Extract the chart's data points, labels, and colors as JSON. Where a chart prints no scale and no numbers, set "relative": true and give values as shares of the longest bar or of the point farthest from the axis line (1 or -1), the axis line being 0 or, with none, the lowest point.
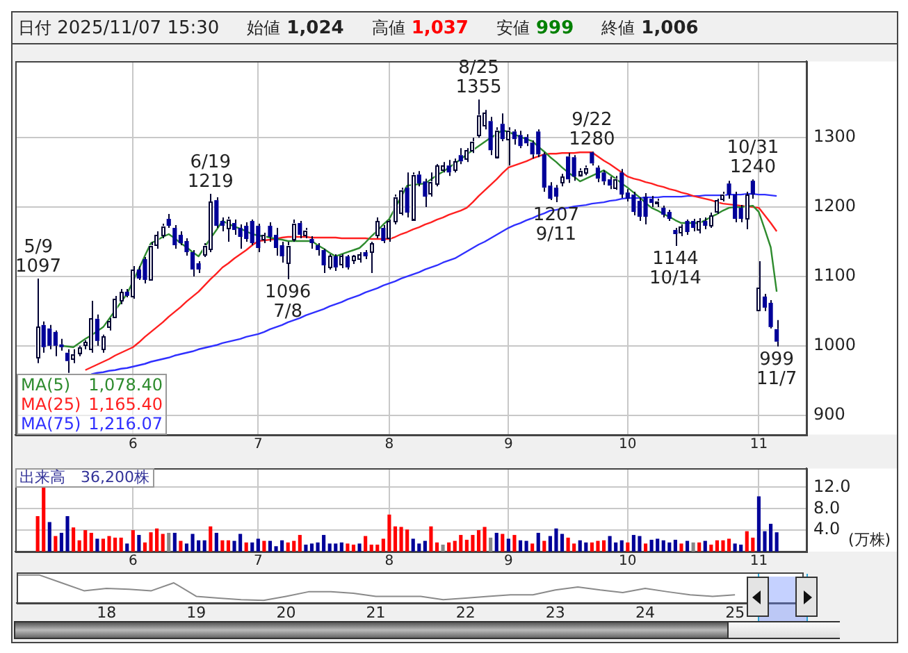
{
  "chart_data": [
    {
      "type": "candlestick",
      "annotations": [
        "日付 2025/11/07 15:30",
        "始値 1,024",
        "高値 1,037",
        "安値 999",
        "終値 1,006",
        {
          "text": "5/9\n1097",
          "y": 1097
        },
        {
          "text": "6/19\n1219",
          "y": 1219
        },
        {
          "text": "1096\n7/8",
          "y": 1096
        },
        {
          "text": "8/25\n1355",
          "y": 1355
        },
        {
          "text": "1207\n9/11",
          "y": 1207
        },
        {
          "text": "9/22\n1280",
          "y": 1280
        },
        {
          "text": "1144\n10/14",
          "y": 1144
        },
        {
          "text": "10/31\n1240",
          "y": 1240
        },
        {
          "text": "999\n11/7",
          "y": 999
        }
      ],
      "categories": [
        null,
        null,
        null,
        null,
        null,
        null,
        null,
        null,
        null,
        null,
        null,
        null,
        null,
        null,
        null,
        null,
        "6",
        null,
        null,
        null,
        null,
        null,
        null,
        null,
        null,
        null,
        null,
        null,
        null,
        null,
        null,
        null,
        null,
        null,
        null,
        null,
        null,
        "7",
        null,
        null,
        null,
        null,
        null,
        null,
        null,
        null,
        null,
        null,
        null,
        null,
        null,
        null,
        null,
        null,
        null,
        null,
        null,
        null,
        null,
        "8",
        null,
        null,
        null,
        null,
        null,
        null,
        null,
        null,
        null,
        null,
        null,
        null,
        null,
        null,
        null,
        null,
        null,
        null,
        null,
        "9",
        null,
        null,
        null,
        null,
        null,
        null,
        null,
        null,
        null,
        null,
        null,
        null,
        null,
        null,
        null,
        null,
        null,
        null,
        null,
        "10",
        null,
        null,
        null,
        null,
        null,
        null,
        null,
        null,
        null,
        null,
        null,
        null,
        null,
        null,
        null,
        null,
        null,
        null,
        null,
        null,
        null,
        "11",
        null,
        null,
        null
      ],
      "ohlc": [
        [
          982,
          1097,
          975,
          1027
        ],
        [
          1030,
          1035,
          990,
          998
        ],
        [
          1025,
          1030,
          995,
          1000
        ],
        [
          1020,
          1022,
          985,
          1000
        ],
        [
          1002,
          1010,
          993,
          998
        ],
        [
          990,
          995,
          961,
          978
        ],
        [
          982,
          995,
          975,
          988
        ],
        [
          990,
          1000,
          985,
          998
        ],
        [
          1000,
          1008,
          995,
          1005
        ],
        [
          995,
          1065,
          990,
          1039
        ],
        [
          1039,
          1045,
          1000,
          1007
        ],
        [
          995,
          1016,
          990,
          1014
        ],
        [
          1027,
          1040,
          1022,
          1035
        ],
        [
          1042,
          1072,
          1040,
          1068
        ],
        [
          1065,
          1082,
          1060,
          1078
        ],
        [
          1078,
          1082,
          1070,
          1072
        ],
        [
          1072,
          1115,
          1068,
          1110
        ],
        [
          1110,
          1115,
          1095,
          1097
        ],
        [
          1125,
          1128,
          1090,
          1095
        ],
        [
          1097,
          1150,
          1095,
          1145
        ],
        [
          1145,
          1165,
          1140,
          1160
        ],
        [
          1160,
          1176,
          1155,
          1173
        ],
        [
          1183,
          1190,
          1170,
          1173
        ],
        [
          1170,
          1174,
          1140,
          1145
        ],
        [
          1160,
          1165,
          1145,
          1148
        ],
        [
          1151,
          1155,
          1130,
          1135
        ],
        [
          1135,
          1138,
          1100,
          1110
        ],
        [
          1119,
          1122,
          1105,
          1110
        ],
        [
          1132,
          1148,
          1128,
          1145
        ],
        [
          1140,
          1219,
          1135,
          1208
        ],
        [
          1210,
          1214,
          1170,
          1173
        ],
        [
          1180,
          1185,
          1165,
          1173
        ],
        [
          1170,
          1186,
          1150,
          1183
        ],
        [
          1177,
          1182,
          1160,
          1167
        ],
        [
          1170,
          1175,
          1140,
          1157
        ],
        [
          1173,
          1178,
          1150,
          1154
        ],
        [
          1180,
          1182,
          1145,
          1148
        ],
        [
          1173,
          1176,
          1135,
          1141
        ],
        [
          1154,
          1163,
          1148,
          1160
        ],
        [
          1173,
          1178,
          1150,
          1157
        ],
        [
          1160,
          1170,
          1130,
          1141
        ],
        [
          1145,
          1150,
          1120,
          1129
        ],
        [
          1120,
          1150,
          1096,
          1145
        ],
        [
          1154,
          1182,
          1150,
          1177
        ],
        [
          1177,
          1180,
          1155,
          1160
        ],
        [
          1160,
          1170,
          1155,
          1167
        ],
        [
          1154,
          1158,
          1140,
          1148
        ],
        [
          1145,
          1148,
          1130,
          1138
        ],
        [
          1138,
          1140,
          1105,
          1116
        ],
        [
          1113,
          1132,
          1110,
          1129
        ],
        [
          1129,
          1132,
          1108,
          1113
        ],
        [
          1116,
          1132,
          1112,
          1129
        ],
        [
          1129,
          1131,
          1110,
          1113
        ],
        [
          1122,
          1131,
          1118,
          1129
        ],
        [
          1125,
          1135,
          1120,
          1132
        ],
        [
          1135,
          1138,
          1125,
          1129
        ],
        [
          1135,
          1150,
          1105,
          1148
        ],
        [
          1160,
          1185,
          1155,
          1180
        ],
        [
          1170,
          1174,
          1148,
          1151
        ],
        [
          1155,
          1182,
          1150,
          1180
        ],
        [
          1180,
          1218,
          1175,
          1215
        ],
        [
          1192,
          1228,
          1188,
          1225
        ],
        [
          1228,
          1250,
          1185,
          1192
        ],
        [
          1183,
          1250,
          1180,
          1247
        ],
        [
          1247,
          1252,
          1230,
          1234
        ],
        [
          1237,
          1241,
          1200,
          1215
        ],
        [
          1220,
          1250,
          1215,
          1237
        ],
        [
          1234,
          1262,
          1230,
          1260
        ],
        [
          1254,
          1265,
          1250,
          1260
        ],
        [
          1260,
          1268,
          1245,
          1250
        ],
        [
          1253,
          1270,
          1250,
          1266
        ],
        [
          1275,
          1285,
          1262,
          1266
        ],
        [
          1270,
          1285,
          1265,
          1282
        ],
        [
          1282,
          1300,
          1278,
          1295
        ],
        [
          1304,
          1355,
          1300,
          1333
        ],
        [
          1317,
          1340,
          1312,
          1336
        ],
        [
          1324,
          1330,
          1275,
          1282
        ],
        [
          1273,
          1315,
          1270,
          1311
        ],
        [
          1320,
          1335,
          1295,
          1298
        ],
        [
          1298,
          1315,
          1260,
          1311
        ],
        [
          1309,
          1312,
          1290,
          1298
        ],
        [
          1304,
          1310,
          1285,
          1288
        ],
        [
          1301,
          1305,
          1288,
          1292
        ],
        [
          1293,
          1296,
          1270,
          1276
        ],
        [
          1309,
          1312,
          1272,
          1276
        ],
        [
          1276,
          1279,
          1222,
          1228
        ],
        [
          1231,
          1236,
          1210,
          1212
        ],
        [
          1228,
          1232,
          1207,
          1215
        ],
        [
          1236,
          1248,
          1230,
          1244
        ],
        [
          1273,
          1278,
          1235,
          1240
        ],
        [
          1272,
          1275,
          1238,
          1244
        ],
        [
          1247,
          1256,
          1244,
          1253
        ],
        [
          1250,
          1260,
          1246,
          1257
        ],
        [
          1279,
          1280,
          1260,
          1263
        ],
        [
          1257,
          1260,
          1236,
          1241
        ],
        [
          1250,
          1253,
          1232,
          1237
        ],
        [
          1240,
          1244,
          1226,
          1231
        ],
        [
          1228,
          1245,
          1225,
          1241
        ],
        [
          1250,
          1255,
          1213,
          1218
        ],
        [
          1221,
          1226,
          1208,
          1212
        ],
        [
          1218,
          1222,
          1188,
          1193
        ],
        [
          1209,
          1214,
          1180,
          1186
        ],
        [
          1215,
          1220,
          1175,
          1186
        ],
        [
          1212,
          1216,
          1200,
          1206
        ],
        [
          1206,
          1212,
          1200,
          1209
        ],
        [
          1199,
          1202,
          1185,
          1189
        ],
        [
          1193,
          1196,
          1180,
          1183
        ],
        [
          1167,
          1170,
          1144,
          1161
        ],
        [
          1164,
          1175,
          1158,
          1172
        ],
        [
          1180,
          1182,
          1160,
          1164
        ],
        [
          1180,
          1183,
          1165,
          1170
        ],
        [
          1167,
          1184,
          1162,
          1180
        ],
        [
          1180,
          1185,
          1168,
          1173
        ],
        [
          1173,
          1192,
          1170,
          1188
        ],
        [
          1194,
          1212,
          1190,
          1210
        ],
        [
          1212,
          1222,
          1208,
          1219
        ],
        [
          1234,
          1238,
          1212,
          1218
        ],
        [
          1218,
          1222,
          1178,
          1183
        ],
        [
          1199,
          1203,
          1178,
          1183
        ],
        [
          1183,
          1222,
          1168,
          1218
        ],
        [
          1238,
          1240,
          1212,
          1218
        ],
        [
          1052,
          1122,
          1050,
          1084
        ],
        [
          1071,
          1075,
          1050,
          1055
        ],
        [
          1062,
          1066,
          1025,
          1027
        ],
        [
          1024,
          1037,
          999,
          1006
        ]
      ],
      "colors": [
        "#ffffff",
        "#000099",
        "#000099",
        "#000099",
        "#000099",
        "#000099",
        "#ffffff",
        "#ffffff",
        "#ffffff",
        "#ffffff",
        "#000099",
        "#ffffff",
        "#ffffff",
        "#ffffff",
        "#ffffff",
        "#000099",
        "#ffffff",
        "#000099",
        "#000099",
        "#ffffff",
        "#ffffff",
        "#ffffff",
        "#000099",
        "#000099",
        "#000099",
        "#000099",
        "#000099",
        "#000099",
        "#ffffff",
        "#ffffff",
        "#000099",
        "#000099",
        "#ffffff",
        "#000099",
        "#000099",
        "#000099",
        "#000099",
        "#000099",
        "#ffffff",
        "#000099",
        "#000099",
        "#000099",
        "#ffffff",
        "#ffffff",
        "#000099",
        "#ffffff",
        "#000099",
        "#000099",
        "#000099",
        "#ffffff",
        "#000099",
        "#ffffff",
        "#000099",
        "#ffffff",
        "#ffffff",
        "#000099",
        "#ffffff",
        "#ffffff",
        "#000099",
        "#ffffff",
        "#ffffff",
        "#ffffff",
        "#000099",
        "#ffffff",
        "#000099",
        "#000099",
        "#ffffff",
        "#ffffff",
        "#ffffff",
        "#000099",
        "#ffffff",
        "#000099",
        "#ffffff",
        "#ffffff",
        "#ffffff",
        "#ffffff",
        "#000099",
        "#ffffff",
        "#000099",
        "#ffffff",
        "#000099",
        "#000099",
        "#000099",
        "#000099",
        "#000099",
        "#000099",
        "#000099",
        "#000099",
        "#ffffff",
        "#000099",
        "#000099",
        "#ffffff",
        "#ffffff",
        "#000099",
        "#000099",
        "#000099",
        "#000099",
        "#ffffff",
        "#000099",
        "#000099",
        "#000099",
        "#000099",
        "#000099",
        "#000099",
        "#ffffff",
        "#000099",
        "#000099",
        "#000099",
        "#ffffff",
        "#000099",
        "#000099",
        "#ffffff",
        "#000099",
        "#ffffff",
        "#ffffff",
        "#ffffff",
        "#000099",
        "#000099",
        "#000099",
        "#ffffff",
        "#000099",
        "#ffffff",
        "#000099",
        "#000099",
        "#000099"
      ],
      "series": [
        {
          "type": "line",
          "name": "MA(5) 1,078.40",
          "color": "#2e8b2e",
          "values": [
            null,
            null,
            null,
            null,
            1000,
            999,
            998,
            1004,
            1010,
            1015,
            1021,
            1027,
            1039,
            1051,
            1063,
            1075,
            1093,
            1111,
            1130,
            1148,
            1152,
            1157,
            1161,
            1155,
            1148,
            1142,
            1135,
            1129,
            1142,
            1155,
            1167,
            1180,
            1176,
            1172,
            1169,
            1165,
            1161,
            1159,
            1158,
            1156,
            1154,
            1153,
            1151,
            1151,
            1151,
            1151,
            1151,
            1145,
            1140,
            1134,
            1129,
            1132,
            1135,
            1138,
            1141,
            1149,
            1158,
            1166,
            1175,
            1183,
            1199,
            1215,
            1231,
            1232,
            1233,
            1234,
            1240,
            1246,
            1251,
            1257,
            1263,
            1269,
            1276,
            1282,
            1288,
            1294,
            1300,
            1305,
            1311,
            1308,
            1305,
            1301,
            1298,
            1295,
            1287,
            1280,
            1272,
            1265,
            1257,
            1250,
            1244,
            1237,
            1241,
            1245,
            1249,
            1253,
            1247,
            1241,
            1234,
            1228,
            1221,
            1214,
            1206,
            1199,
            1195,
            1190,
            1186,
            1181,
            1177,
            1177,
            1177,
            1177,
            1181,
            1186,
            1190,
            1195,
            1199,
            1200,
            1200,
            1201,
            1202,
            1193,
            1168,
            1142,
            1078
          ]
        },
        {
          "type": "line",
          "name": "MA(25) 1,165.40",
          "color": "#ff2020",
          "values": [
            null,
            null,
            null,
            null,
            null,
            null,
            null,
            null,
            965,
            969,
            973,
            977,
            981,
            986,
            990,
            994,
            998,
            1005,
            1013,
            1020,
            1027,
            1034,
            1042,
            1049,
            1056,
            1064,
            1071,
            1078,
            1087,
            1096,
            1104,
            1113,
            1119,
            1126,
            1132,
            1138,
            1145,
            1151,
            1152,
            1153,
            1154,
            1156,
            1157,
            1157,
            1157,
            1157,
            1156,
            1156,
            1156,
            1156,
            1156,
            1155,
            1155,
            1155,
            1155,
            1155,
            1154,
            1154,
            1154,
            1154,
            1157,
            1161,
            1164,
            1168,
            1171,
            1175,
            1178,
            1182,
            1185,
            1189,
            1192,
            1195,
            1199,
            1207,
            1216,
            1224,
            1232,
            1240,
            1249,
            1257,
            1260,
            1263,
            1266,
            1270,
            1273,
            1276,
            1277,
            1277,
            1278,
            1278,
            1278,
            1279,
            1279,
            1279,
            1273,
            1267,
            1262,
            1256,
            1250,
            1244,
            1241,
            1239,
            1236,
            1234,
            1231,
            1229,
            1226,
            1224,
            1221,
            1219,
            1216,
            1214,
            1212,
            1210,
            1207,
            1205,
            1204,
            1203,
            1202,
            1201,
            1200,
            1199,
            1188,
            1177,
            1165
          ]
        },
        {
          "type": "line",
          "name": "MA(75) 1,216.07",
          "color": "#3030ff",
          "values": [
            null,
            null,
            null,
            null,
            null,
            null,
            null,
            null,
            null,
            959,
            961,
            962,
            964,
            965,
            967,
            968,
            970,
            972,
            974,
            977,
            979,
            981,
            983,
            986,
            988,
            990,
            992,
            995,
            997,
            999,
            1001,
            1004,
            1006,
            1008,
            1010,
            1013,
            1015,
            1017,
            1020,
            1024,
            1027,
            1030,
            1034,
            1037,
            1040,
            1044,
            1047,
            1050,
            1053,
            1057,
            1060,
            1063,
            1067,
            1070,
            1073,
            1077,
            1080,
            1083,
            1087,
            1090,
            1093,
            1097,
            1100,
            1103,
            1106,
            1110,
            1113,
            1116,
            1120,
            1123,
            1126,
            1131,
            1136,
            1141,
            1146,
            1150,
            1155,
            1160,
            1165,
            1170,
            1174,
            1177,
            1181,
            1184,
            1188,
            1191,
            1195,
            1196,
            1198,
            1199,
            1201,
            1202,
            1203,
            1205,
            1206,
            1207,
            1209,
            1210,
            1212,
            1213,
            1213,
            1213,
            1214,
            1214,
            1214,
            1215,
            1215,
            1215,
            1215,
            1216,
            1216,
            1216,
            1217,
            1217,
            1217,
            1217,
            1218,
            1218,
            1218,
            1219,
            1219,
            1218,
            1218,
            1217,
            1216
          ]
        }
      ],
      "ylim": [
        872,
        1410
      ],
      "yticks": [
        900,
        1000,
        1100,
        1200,
        1300
      ],
      "grid": true,
      "legend": "bottom left"
    },
    {
      "type": "bar",
      "categories": [
        null,
        null,
        null,
        null,
        null,
        null,
        null,
        null,
        null,
        null,
        null,
        null,
        null,
        null,
        null,
        null,
        "6",
        null,
        null,
        null,
        null,
        null,
        null,
        null,
        null,
        null,
        null,
        null,
        null,
        null,
        null,
        null,
        null,
        null,
        null,
        null,
        null,
        "7",
        null,
        null,
        null,
        null,
        null,
        null,
        null,
        null,
        null,
        null,
        null,
        null,
        null,
        null,
        null,
        null,
        null,
        null,
        null,
        null,
        null,
        "8",
        null,
        null,
        null,
        null,
        null,
        null,
        null,
        null,
        null,
        null,
        null,
        null,
        null,
        null,
        null,
        null,
        null,
        null,
        null,
        "9",
        null,
        null,
        null,
        null,
        null,
        null,
        null,
        null,
        null,
        null,
        null,
        null,
        null,
        null,
        null,
        null,
        null,
        null,
        null,
        "10",
        null,
        null,
        null,
        null,
        null,
        null,
        null,
        null,
        null,
        null,
        null,
        null,
        null,
        null,
        null,
        null,
        null,
        null,
        null,
        null,
        null,
        "11",
        null,
        null,
        null
      ],
      "values": [
        6.6,
        12.0,
        5.5,
        2.9,
        3.5,
        6.6,
        4.5,
        2.1,
        4.0,
        3.5,
        2.4,
        2.4,
        2.9,
        2.6,
        2.6,
        1.5,
        4.0,
        3.1,
        1.7,
        3.6,
        4.3,
        3.3,
        3.5,
        3.5,
        2.0,
        1.5,
        3.3,
        2.1,
        2.1,
        4.7,
        3.5,
        2.1,
        2.1,
        2.0,
        3.3,
        1.7,
        1.7,
        2.4,
        2.0,
        2.0,
        1.0,
        2.1,
        1.7,
        2.0,
        3.1,
        1.3,
        1.5,
        1.7,
        3.1,
        1.5,
        1.5,
        1.7,
        1.5,
        1.3,
        1.5,
        2.9,
        1.3,
        1.3,
        2.4,
        6.9,
        4.7,
        4.6,
        4.1,
        2.4,
        1.5,
        2.0,
        4.7,
        1.7,
        1.3,
        1.7,
        2.0,
        3.1,
        2.2,
        3.1,
        4.0,
        4.6,
        2.6,
        3.5,
        3.3,
        2.4,
        3.1,
        2.1,
        2.0,
        1.5,
        3.5,
        2.0,
        2.9,
        4.3,
        3.3,
        2.6,
        1.5,
        2.1,
        1.7,
        1.7,
        2.0,
        2.1,
        2.9,
        1.7,
        2.1,
        1.7,
        3.1,
        2.9,
        1.5,
        2.2,
        2.4,
        2.1,
        1.7,
        2.2,
        1.5,
        2.0,
        1.7,
        1.7,
        2.0,
        1.3,
        2.1,
        2.1,
        2.4,
        1.5,
        1.3,
        3.8,
        2.6,
        10.3,
        3.8,
        5.2,
        3.6
      ],
      "colors": [
        "#ff0000",
        "#ff0000",
        "#000099",
        "#ff0000",
        "#000099",
        "#000099",
        "#ff0000",
        "#ff0000",
        "#ff0000",
        "#ff0000",
        "#000099",
        "#ff0000",
        "#ff0000",
        "#ff0000",
        "#ff0000",
        "#000099",
        "#ff0000",
        "#000099",
        "#ff0000",
        "#ff0000",
        "#ff0000",
        "#ff0000",
        "#888888",
        "#000099",
        "#ff0000",
        "#000099",
        "#000099",
        "#000099",
        "#000099",
        "#ff0000",
        "#000099",
        "#ff0000",
        "#ff0000",
        "#000099",
        "#000099",
        "#ff0000",
        "#000099",
        "#000099",
        "#ff0000",
        "#000099",
        "#000099",
        "#000099",
        "#ff0000",
        "#ff0000",
        "#ff0000",
        "#000099",
        "#000099",
        "#000099",
        "#000099",
        "#000099",
        "#000099",
        "#000099",
        "#ff0000",
        "#ff0000",
        "#000099",
        "#ff0000",
        "#ff0000",
        "#ff0000",
        "#ff0000",
        "#ff0000",
        "#ff0000",
        "#ff0000",
        "#ff0000",
        "#000099",
        "#000099",
        "#000099",
        "#ff0000",
        "#ff0000",
        "#888888",
        "#ff0000",
        "#ff0000",
        "#ff0000",
        "#ff0000",
        "#ff0000",
        "#ff0000",
        "#ff0000",
        "#888888",
        "#000099",
        "#ff0000",
        "#000099",
        "#ff0000",
        "#000099",
        "#000099",
        "#ff0000",
        "#000099",
        "#ff0000",
        "#000099",
        "#000099",
        "#000099",
        "#ff0000",
        "#ff0000",
        "#000099",
        "#000099",
        "#ff0000",
        "#ff0000",
        "#ff0000",
        "#000099",
        "#000099",
        "#000099",
        "#ff0000",
        "#000099",
        "#000099",
        "#ff0000",
        "#000099",
        "#000099",
        "#000099",
        "#000099",
        "#000099",
        "#ff0000",
        "#000099",
        "#888888",
        "#ff0000",
        "#000099",
        "#ff0000",
        "#ff0000",
        "#ff0000",
        "#ff0000",
        "#000099",
        "#000099",
        "#ff0000",
        "#ff0000",
        "#000099",
        "#000099",
        "#000099",
        "#000099"
      ],
      "ylim": [
        0,
        15.5
      ],
      "yticks": [
        {
          "value": 4,
          "label": "4.0"
        },
        {
          "value": 8,
          "label": "8.0"
        },
        {
          "value": 12,
          "label": "12.0"
        }
      ],
      "ylabel": "(万株)",
      "annotations": [
        "出来高　36,200株"
      ],
      "grid": true
    },
    {
      "type": "line",
      "relative": true,
      "tick_labels": "x",
      "color": "#8a8a8a",
      "categories": [
        null,
        null,
        null,
        null,
        "18",
        null,
        null,
        null,
        "19",
        null,
        null,
        null,
        "20",
        null,
        null,
        null,
        "21",
        null,
        null,
        null,
        "22",
        null,
        null,
        null,
        "23",
        null,
        null,
        null,
        "24",
        null,
        null,
        null,
        "25",
        null,
        null,
        null
      ],
      "values": [
        1,
        1,
        0.69,
        0.38,
        0.47,
        0.44,
        0.38,
        0.69,
        0.16,
        0.09,
        0.03,
        0,
        0.16,
        0.34,
        0.34,
        0.28,
        0.16,
        0.16,
        0.16,
        0.03,
        0.09,
        0.16,
        0.22,
        0.22,
        0.41,
        0.53,
        0.41,
        0.31,
        0.47,
        0.34,
        0.22,
        0.16,
        0.22,
        null,
        null,
        null
      ]
    }
  ]
}
